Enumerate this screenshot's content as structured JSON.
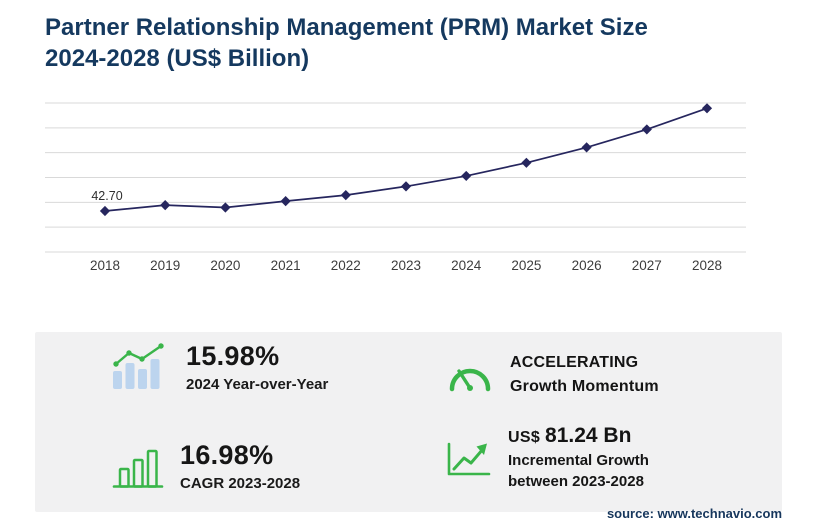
{
  "title": {
    "line1": "Partner Relationship Management (PRM) Market Size",
    "line2": "2024-2028 (US$ Billion)"
  },
  "chart_data": {
    "type": "line",
    "title": "Partner Relationship Management (PRM) Market Size 2024-2028 (US$ Billion)",
    "x": [
      2018,
      2019,
      2020,
      2021,
      2022,
      2023,
      2024,
      2025,
      2026,
      2027,
      2028
    ],
    "series": [
      {
        "name": "PRM market size (US$ Billion)",
        "values": [
          42.7,
          48.8,
          46.3,
          52.9,
          59.2,
          68.24,
          79.15,
          92.8,
          108.8,
          127.5,
          149.48
        ]
      }
    ],
    "data_labels": [
      {
        "x": 2018,
        "text": "42.70"
      }
    ],
    "ylim": [
      0,
      155
    ],
    "xlabel": "",
    "ylabel": "",
    "grid": "horizontal-only",
    "legend": "none",
    "line_color": "#26265e",
    "marker": "diamond"
  },
  "stats": [
    {
      "icon": "bar-line-growth-icon",
      "value": "15.98%",
      "label": "2024 Year-over-Year"
    },
    {
      "icon": "speedometer-icon",
      "value": "ACCELERATING",
      "label": "Growth Momentum"
    },
    {
      "icon": "bar-chart-icon",
      "value": "16.98%",
      "label": "CAGR 2023-2028"
    },
    {
      "icon": "trend-arrow-icon",
      "value_prefix": "US$",
      "value": "81.24 Bn",
      "label": "Incremental Growth",
      "label2": "between 2023-2028"
    }
  ],
  "source": "source: www.technavio.com",
  "colors": {
    "navy_title": "#15395f",
    "line": "#26265e",
    "accent_green": "#3ab54a",
    "icon_blue": "#bcd4ee",
    "panel_gray": "#f1f1f2",
    "gridline": "#d9d9d9"
  }
}
